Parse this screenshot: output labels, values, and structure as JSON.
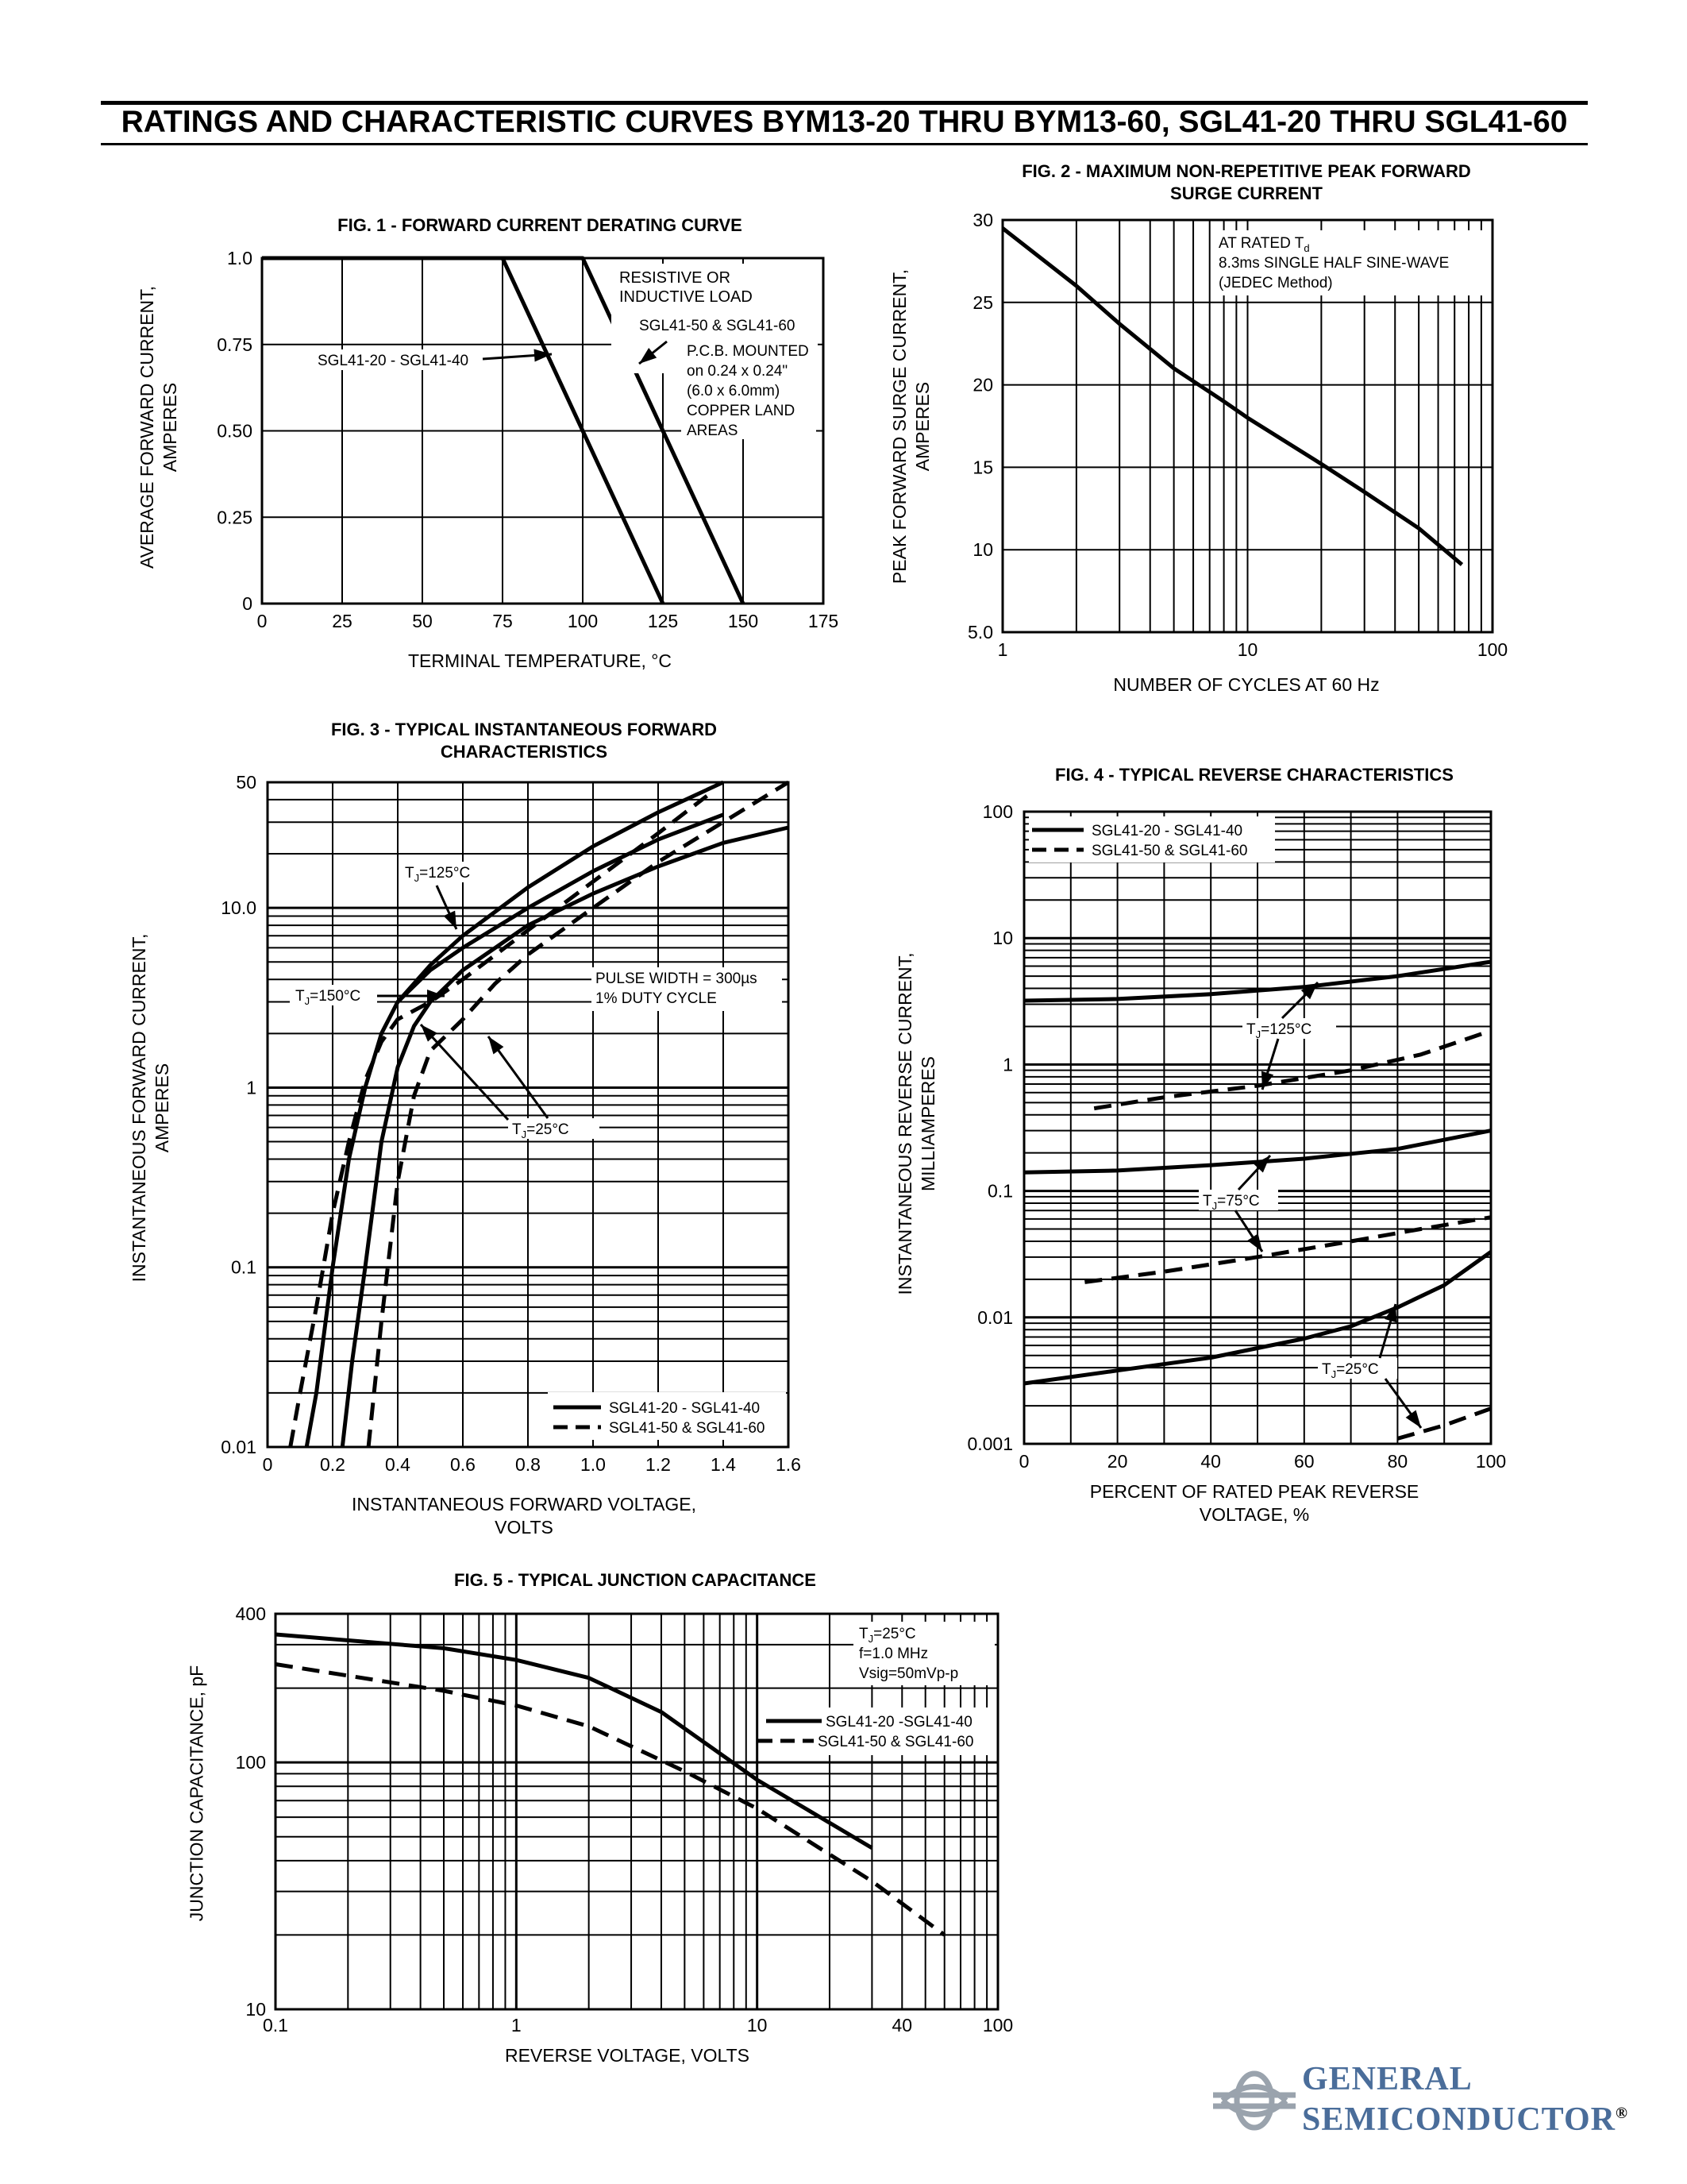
{
  "page_title": "RATINGS AND CHARACTERISTIC CURVES BYM13-20 THRU BYM13-60, SGL41-20 THRU SGL41-60",
  "logo": {
    "line1": "GENERAL",
    "line2": "SEMICONDUCTOR",
    "mark": "®",
    "color": "#4a6d9a"
  },
  "fig1": {
    "title": "FIG. 1 - FORWARD CURRENT DERATING CURVE",
    "ylabel_line1": "AVERAGE FORWARD CURRENT,",
    "ylabel_line2": "AMPERES",
    "xlabel": "TERMINAL TEMPERATURE, °C",
    "yticks": [
      "0",
      "0.25",
      "0.50",
      "0.75",
      "1.0"
    ],
    "xticks": [
      "0",
      "25",
      "50",
      "75",
      "100",
      "125",
      "150",
      "175"
    ],
    "ann_resistive": [
      "RESISTIVE OR",
      "INDUCTIVE LOAD"
    ],
    "ann_sgl50": "SGL41-50 & SGL41-60",
    "ann_pcb": [
      "P.C.B. MOUNTED",
      "on 0.24 x 0.24\"",
      "(6.0 x 6.0mm)",
      "COPPER LAND",
      "AREAS"
    ],
    "ann_sgl20": "SGL41-20 - SGL41-40"
  },
  "fig2": {
    "title_line1": "FIG. 2 - MAXIMUM NON-REPETITIVE PEAK FORWARD",
    "title_line2": "SURGE CURRENT",
    "ylabel_line1": "PEAK FORWARD SURGE CURRENT,",
    "ylabel_line2": "AMPERES",
    "xlabel": "NUMBER OF CYCLES AT 60 Hz",
    "yticks": [
      "5.0",
      "10",
      "15",
      "20",
      "25",
      "30"
    ],
    "xticks": [
      "1",
      "10",
      "100"
    ],
    "ann": [
      "AT RATED T",
      "8.3ms SINGLE HALF SINE-WAVE",
      "(JEDEC Method)"
    ],
    "ann_sub": "d"
  },
  "fig3": {
    "title_line1": "FIG. 3 - TYPICAL INSTANTANEOUS FORWARD",
    "title_line2": "CHARACTERISTICS",
    "ylabel_line1": "INSTANTANEOUS FORWARD CURRENT,",
    "ylabel_line2": "AMPERES",
    "xlabel_line1": "INSTANTANEOUS FORWARD VOLTAGE,",
    "xlabel_line2": "VOLTS",
    "yticks": [
      "0.01",
      "0.1",
      "1",
      "10.0",
      "50"
    ],
    "xticks": [
      "0",
      "0.2",
      "0.4",
      "0.6",
      "0.8",
      "1.0",
      "1.2",
      "1.4",
      "1.6"
    ],
    "ann_125": "T =125°C",
    "ann_150": "T =150°C",
    "ann_25": "T =25°C",
    "ann_tj_sub": "J",
    "ann_pulse": [
      "PULSE WIDTH = 300µs",
      "1% DUTY CYCLE"
    ],
    "legend": [
      "SGL41-20 - SGL41-40",
      "SGL41-50 & SGL41-60"
    ]
  },
  "fig4": {
    "title": "FIG. 4 - TYPICAL REVERSE CHARACTERISTICS",
    "ylabel_line1": "INSTANTANEOUS REVERSE CURRENT,",
    "ylabel_line2": "MILLIAMPERES",
    "xlabel_line1": "PERCENT OF RATED PEAK REVERSE",
    "xlabel_line2": "VOLTAGE, %",
    "yticks": [
      "0.001",
      "0.01",
      "0.1",
      "1",
      "10",
      "100"
    ],
    "xticks": [
      "0",
      "20",
      "40",
      "60",
      "80",
      "100"
    ],
    "legend": [
      "SGL41-20 - SGL41-40",
      "SGL41-50 & SGL41-60"
    ],
    "ann_125": "T =125°C",
    "ann_75": "T =75°C",
    "ann_25": "T =25°C",
    "ann_tj_sub": "J"
  },
  "fig5": {
    "title": "FIG. 5 - TYPICAL JUNCTION CAPACITANCE",
    "ylabel": "JUNCTION CAPACITANCE, pF",
    "xlabel": "REVERSE VOLTAGE, VOLTS",
    "yticks": [
      "10",
      "100",
      "400"
    ],
    "xticks": [
      "0.1",
      "1",
      "10",
      "40",
      "100"
    ],
    "ann": [
      "T =25°C",
      "f=1.0 MHz",
      "Vsig=50mVp-p"
    ],
    "ann_tj_sub": "J",
    "legend": [
      "SGL41-20 -SGL41-40",
      "SGL41-50 & SGL41-60"
    ]
  },
  "chart_data": [
    {
      "id": "fig1",
      "type": "line",
      "title": "FIG. 1 - FORWARD CURRENT DERATING CURVE",
      "xlabel": "TERMINAL TEMPERATURE, °C",
      "ylabel": "AVERAGE FORWARD CURRENT, AMPERES",
      "xlim": [
        0,
        175
      ],
      "ylim": [
        0,
        1.0
      ],
      "grid": true,
      "series": [
        {
          "name": "SGL41-20 - SGL41-40",
          "x": [
            0,
            75,
            125
          ],
          "y": [
            1.0,
            1.0,
            0
          ]
        },
        {
          "name": "SGL41-50 & SGL41-60",
          "x": [
            0,
            100,
            150
          ],
          "y": [
            1.0,
            1.0,
            0
          ]
        }
      ]
    },
    {
      "id": "fig2",
      "type": "line",
      "title": "FIG. 2 - MAXIMUM NON-REPETITIVE PEAK FORWARD SURGE CURRENT",
      "xlabel": "NUMBER OF CYCLES AT 60 Hz",
      "ylabel": "PEAK FORWARD SURGE CURRENT, AMPERES",
      "xscale": "log",
      "xlim": [
        1,
        100
      ],
      "ylim": [
        5,
        30
      ],
      "grid": true,
      "series": [
        {
          "x": [
            1,
            2,
            3,
            5,
            8,
            10,
            20,
            30,
            50,
            75
          ],
          "y": [
            29.5,
            26,
            23.7,
            21,
            19,
            18,
            15.2,
            13.5,
            11.3,
            9.1
          ]
        }
      ]
    },
    {
      "id": "fig3",
      "type": "line",
      "title": "FIG. 3 - TYPICAL INSTANTANEOUS FORWARD CHARACTERISTICS",
      "xlabel": "INSTANTANEOUS FORWARD VOLTAGE, VOLTS",
      "ylabel": "INSTANTANEOUS FORWARD CURRENT, AMPERES",
      "yscale": "log",
      "xlim": [
        0,
        1.6
      ],
      "ylim": [
        0.01,
        50
      ],
      "grid": true,
      "legend": "bottom-right",
      "series": [
        {
          "name": "SGL41-20 - SGL41-40",
          "label": "TJ=150°C",
          "style": "solid",
          "x": [
            0.12,
            0.15,
            0.2,
            0.25,
            0.3,
            0.35,
            0.4,
            0.5,
            0.6,
            0.8,
            1.0,
            1.2,
            1.4
          ],
          "y": [
            0.01,
            0.02,
            0.1,
            0.4,
            1,
            2,
            3,
            4.5,
            6,
            10,
            16,
            24,
            33
          ]
        },
        {
          "name": "SGL41-20 - SGL41-40",
          "label": "TJ=25°C",
          "style": "solid",
          "x": [
            0.23,
            0.26,
            0.3,
            0.35,
            0.4,
            0.45,
            0.5,
            0.6,
            0.8,
            1.0,
            1.2,
            1.4,
            1.6
          ],
          "y": [
            0.01,
            0.03,
            0.1,
            0.5,
            1.3,
            2.2,
            3,
            4.5,
            8,
            12,
            17,
            23,
            28
          ]
        },
        {
          "name": "SGL41-20 - SGL41-40",
          "label": "TJ=125°C",
          "style": "solid",
          "x": [
            0.4,
            0.5,
            0.6,
            0.8,
            1.0,
            1.2,
            1.4
          ],
          "y": [
            3,
            4.8,
            7,
            13,
            22,
            34,
            50
          ]
        },
        {
          "name": "SGL41-50 & SGL41-60",
          "label": "TJ=150°C",
          "style": "dashed",
          "x": [
            0.07,
            0.1,
            0.15,
            0.2,
            0.25,
            0.3,
            0.35,
            0.4,
            0.5,
            0.6,
            0.8,
            1.0,
            1.2,
            1.35
          ],
          "y": [
            0.01,
            0.02,
            0.06,
            0.2,
            0.5,
            1.1,
            1.8,
            2.4,
            3,
            4,
            7.5,
            14,
            26,
            42
          ]
        },
        {
          "name": "SGL41-50 & SGL41-60",
          "label": "TJ=25°C",
          "style": "dashed",
          "x": [
            0.31,
            0.35,
            0.4,
            0.45,
            0.5,
            0.6,
            0.7,
            0.8,
            1.0,
            1.2,
            1.4,
            1.6
          ],
          "y": [
            0.01,
            0.05,
            0.3,
            0.9,
            1.6,
            2.4,
            3.8,
            5.5,
            10,
            18,
            30,
            50
          ]
        }
      ]
    },
    {
      "id": "fig4",
      "type": "line",
      "title": "FIG. 4 - TYPICAL REVERSE CHARACTERISTICS",
      "xlabel": "PERCENT OF RATED PEAK REVERSE VOLTAGE, %",
      "ylabel": "INSTANTANEOUS REVERSE CURRENT, MILLIAMPERES",
      "yscale": "log",
      "xlim": [
        0,
        100
      ],
      "ylim": [
        0.001,
        100
      ],
      "grid": true,
      "legend": "top-left",
      "series": [
        {
          "name": "SGL41-20 - SGL41-40",
          "label": "TJ=125°C",
          "style": "solid",
          "x": [
            0,
            20,
            40,
            60,
            80,
            100
          ],
          "y": [
            3.2,
            3.3,
            3.6,
            4.1,
            5.0,
            6.5
          ]
        },
        {
          "name": "SGL41-50 & SGL41-60",
          "label": "TJ=125°C",
          "style": "dashed",
          "x": [
            15,
            30,
            50,
            70,
            85,
            100
          ],
          "y": [
            0.45,
            0.55,
            0.68,
            0.9,
            1.2,
            1.85
          ]
        },
        {
          "name": "SGL41-20 - SGL41-40",
          "label": "TJ=75°C",
          "style": "solid",
          "x": [
            0,
            20,
            40,
            60,
            80,
            100
          ],
          "y": [
            0.14,
            0.145,
            0.16,
            0.18,
            0.215,
            0.3
          ]
        },
        {
          "name": "SGL41-50 & SGL41-60",
          "label": "TJ=75°C",
          "style": "dashed",
          "x": [
            13,
            30,
            50,
            70,
            85,
            100
          ],
          "y": [
            0.019,
            0.023,
            0.03,
            0.04,
            0.05,
            0.062
          ]
        },
        {
          "name": "SGL41-20 - SGL41-40",
          "label": "TJ=25°C",
          "style": "solid",
          "x": [
            0,
            20,
            40,
            60,
            70,
            80,
            90,
            100
          ],
          "y": [
            0.003,
            0.0038,
            0.0048,
            0.0068,
            0.0085,
            0.012,
            0.018,
            0.033
          ]
        },
        {
          "name": "SGL41-50 & SGL41-60",
          "label": "TJ=25°C",
          "style": "dashed",
          "x": [
            80,
            90,
            100
          ],
          "y": [
            0.0011,
            0.0014,
            0.0019
          ]
        }
      ]
    },
    {
      "id": "fig5",
      "type": "line",
      "title": "FIG. 5 - TYPICAL JUNCTION CAPACITANCE",
      "xlabel": "REVERSE VOLTAGE, VOLTS",
      "ylabel": "JUNCTION CAPACITANCE, pF",
      "xscale": "log",
      "yscale": "log",
      "xlim": [
        0.1,
        100
      ],
      "ylim": [
        10,
        400
      ],
      "grid": true,
      "legend": "top-right",
      "series": [
        {
          "name": "SGL41-20 -SGL41-40",
          "style": "solid",
          "x": [
            0.1,
            0.5,
            1,
            2,
            4,
            10,
            30
          ],
          "y": [
            330,
            290,
            260,
            220,
            160,
            85,
            45
          ]
        },
        {
          "name": "SGL41-50 & SGL41-60",
          "style": "dashed",
          "x": [
            0.1,
            0.5,
            1,
            2,
            5,
            10,
            30,
            60
          ],
          "y": [
            250,
            195,
            170,
            140,
            92,
            65,
            33,
            20
          ]
        }
      ]
    }
  ]
}
